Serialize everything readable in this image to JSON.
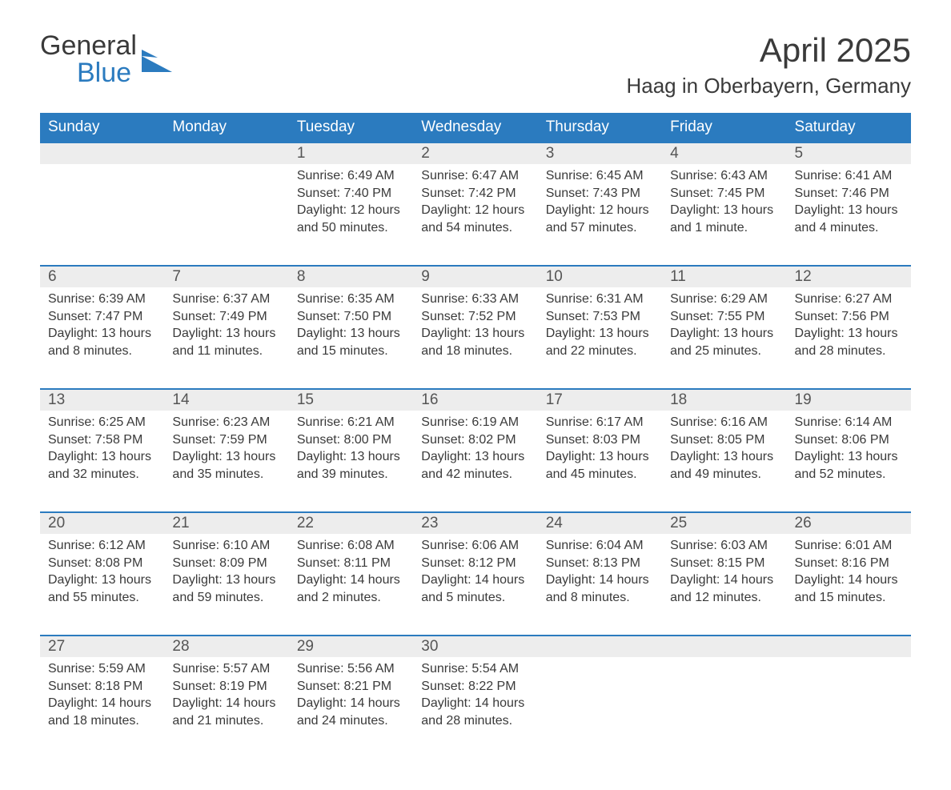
{
  "logo": {
    "word1": "General",
    "word2": "Blue"
  },
  "title": "April 2025",
  "location": "Haag in Oberbayern, Germany",
  "colors": {
    "brand_blue": "#2b7bbf",
    "header_text": "#ffffff",
    "band_grey": "#ededed",
    "text": "#3a3a3a",
    "background": "#ffffff"
  },
  "typography": {
    "title_fontsize": 42,
    "location_fontsize": 26,
    "dayhead_fontsize": 19,
    "daynum_fontsize": 19,
    "body_fontsize": 16,
    "logo_fontsize": 34
  },
  "layout": {
    "columns": 7,
    "rows": 5
  },
  "day_headers": [
    "Sunday",
    "Monday",
    "Tuesday",
    "Wednesday",
    "Thursday",
    "Friday",
    "Saturday"
  ],
  "weeks": [
    [
      {
        "n": "",
        "lines": []
      },
      {
        "n": "",
        "lines": []
      },
      {
        "n": "1",
        "lines": [
          "Sunrise: 6:49 AM",
          "Sunset: 7:40 PM",
          "Daylight: 12 hours and 50 minutes."
        ]
      },
      {
        "n": "2",
        "lines": [
          "Sunrise: 6:47 AM",
          "Sunset: 7:42 PM",
          "Daylight: 12 hours and 54 minutes."
        ]
      },
      {
        "n": "3",
        "lines": [
          "Sunrise: 6:45 AM",
          "Sunset: 7:43 PM",
          "Daylight: 12 hours and 57 minutes."
        ]
      },
      {
        "n": "4",
        "lines": [
          "Sunrise: 6:43 AM",
          "Sunset: 7:45 PM",
          "Daylight: 13 hours and 1 minute."
        ]
      },
      {
        "n": "5",
        "lines": [
          "Sunrise: 6:41 AM",
          "Sunset: 7:46 PM",
          "Daylight: 13 hours and 4 minutes."
        ]
      }
    ],
    [
      {
        "n": "6",
        "lines": [
          "Sunrise: 6:39 AM",
          "Sunset: 7:47 PM",
          "Daylight: 13 hours and 8 minutes."
        ]
      },
      {
        "n": "7",
        "lines": [
          "Sunrise: 6:37 AM",
          "Sunset: 7:49 PM",
          "Daylight: 13 hours and 11 minutes."
        ]
      },
      {
        "n": "8",
        "lines": [
          "Sunrise: 6:35 AM",
          "Sunset: 7:50 PM",
          "Daylight: 13 hours and 15 minutes."
        ]
      },
      {
        "n": "9",
        "lines": [
          "Sunrise: 6:33 AM",
          "Sunset: 7:52 PM",
          "Daylight: 13 hours and 18 minutes."
        ]
      },
      {
        "n": "10",
        "lines": [
          "Sunrise: 6:31 AM",
          "Sunset: 7:53 PM",
          "Daylight: 13 hours and 22 minutes."
        ]
      },
      {
        "n": "11",
        "lines": [
          "Sunrise: 6:29 AM",
          "Sunset: 7:55 PM",
          "Daylight: 13 hours and 25 minutes."
        ]
      },
      {
        "n": "12",
        "lines": [
          "Sunrise: 6:27 AM",
          "Sunset: 7:56 PM",
          "Daylight: 13 hours and 28 minutes."
        ]
      }
    ],
    [
      {
        "n": "13",
        "lines": [
          "Sunrise: 6:25 AM",
          "Sunset: 7:58 PM",
          "Daylight: 13 hours and 32 minutes."
        ]
      },
      {
        "n": "14",
        "lines": [
          "Sunrise: 6:23 AM",
          "Sunset: 7:59 PM",
          "Daylight: 13 hours and 35 minutes."
        ]
      },
      {
        "n": "15",
        "lines": [
          "Sunrise: 6:21 AM",
          "Sunset: 8:00 PM",
          "Daylight: 13 hours and 39 minutes."
        ]
      },
      {
        "n": "16",
        "lines": [
          "Sunrise: 6:19 AM",
          "Sunset: 8:02 PM",
          "Daylight: 13 hours and 42 minutes."
        ]
      },
      {
        "n": "17",
        "lines": [
          "Sunrise: 6:17 AM",
          "Sunset: 8:03 PM",
          "Daylight: 13 hours and 45 minutes."
        ]
      },
      {
        "n": "18",
        "lines": [
          "Sunrise: 6:16 AM",
          "Sunset: 8:05 PM",
          "Daylight: 13 hours and 49 minutes."
        ]
      },
      {
        "n": "19",
        "lines": [
          "Sunrise: 6:14 AM",
          "Sunset: 8:06 PM",
          "Daylight: 13 hours and 52 minutes."
        ]
      }
    ],
    [
      {
        "n": "20",
        "lines": [
          "Sunrise: 6:12 AM",
          "Sunset: 8:08 PM",
          "Daylight: 13 hours and 55 minutes."
        ]
      },
      {
        "n": "21",
        "lines": [
          "Sunrise: 6:10 AM",
          "Sunset: 8:09 PM",
          "Daylight: 13 hours and 59 minutes."
        ]
      },
      {
        "n": "22",
        "lines": [
          "Sunrise: 6:08 AM",
          "Sunset: 8:11 PM",
          "Daylight: 14 hours and 2 minutes."
        ]
      },
      {
        "n": "23",
        "lines": [
          "Sunrise: 6:06 AM",
          "Sunset: 8:12 PM",
          "Daylight: 14 hours and 5 minutes."
        ]
      },
      {
        "n": "24",
        "lines": [
          "Sunrise: 6:04 AM",
          "Sunset: 8:13 PM",
          "Daylight: 14 hours and 8 minutes."
        ]
      },
      {
        "n": "25",
        "lines": [
          "Sunrise: 6:03 AM",
          "Sunset: 8:15 PM",
          "Daylight: 14 hours and 12 minutes."
        ]
      },
      {
        "n": "26",
        "lines": [
          "Sunrise: 6:01 AM",
          "Sunset: 8:16 PM",
          "Daylight: 14 hours and 15 minutes."
        ]
      }
    ],
    [
      {
        "n": "27",
        "lines": [
          "Sunrise: 5:59 AM",
          "Sunset: 8:18 PM",
          "Daylight: 14 hours and 18 minutes."
        ]
      },
      {
        "n": "28",
        "lines": [
          "Sunrise: 5:57 AM",
          "Sunset: 8:19 PM",
          "Daylight: 14 hours and 21 minutes."
        ]
      },
      {
        "n": "29",
        "lines": [
          "Sunrise: 5:56 AM",
          "Sunset: 8:21 PM",
          "Daylight: 14 hours and 24 minutes."
        ]
      },
      {
        "n": "30",
        "lines": [
          "Sunrise: 5:54 AM",
          "Sunset: 8:22 PM",
          "Daylight: 14 hours and 28 minutes."
        ]
      },
      {
        "n": "",
        "lines": []
      },
      {
        "n": "",
        "lines": []
      },
      {
        "n": "",
        "lines": []
      }
    ]
  ]
}
